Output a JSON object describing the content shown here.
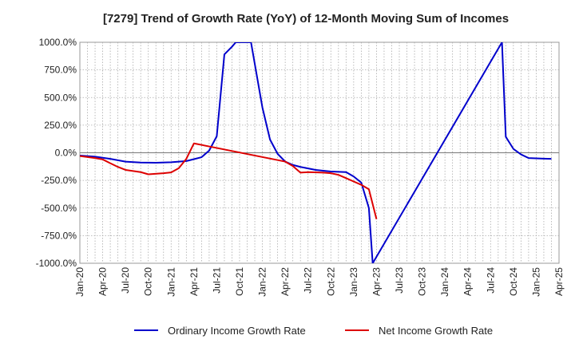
{
  "chart_data": {
    "type": "line",
    "title": "[7279]  Trend of Growth Rate (YoY) of 12-Month Moving Sum of Incomes",
    "xlabel": "",
    "ylabel": "",
    "ylim": [
      -1000,
      1000
    ],
    "yticks": [
      1000,
      750,
      500,
      250,
      0,
      -250,
      -500,
      -750,
      -1000
    ],
    "ytick_labels": [
      "1000.0%",
      "750.0%",
      "500.0%",
      "250.0%",
      "0.0%",
      "-250.0%",
      "-500.0%",
      "-750.0%",
      "-1000.0%"
    ],
    "xticks": [
      "Jan-20",
      "Apr-20",
      "Jul-20",
      "Oct-20",
      "Jan-21",
      "Apr-21",
      "Jul-21",
      "Oct-21",
      "Jan-22",
      "Apr-22",
      "Jul-22",
      "Oct-22",
      "Jan-23",
      "Apr-23",
      "Jul-23",
      "Oct-23",
      "Jan-24",
      "Apr-24",
      "Jul-24",
      "Oct-24",
      "Jan-25",
      "Apr-25"
    ],
    "x_unit": "month index from Jan-20",
    "grid": true,
    "legend_position": "bottom",
    "series": [
      {
        "name": "Ordinary Income Growth Rate",
        "color": "#0000cc",
        "points": [
          [
            0,
            -25
          ],
          [
            2,
            -35
          ],
          [
            4,
            -55
          ],
          [
            6,
            -80
          ],
          [
            8,
            -88
          ],
          [
            10,
            -90
          ],
          [
            12,
            -86
          ],
          [
            14,
            -75
          ],
          [
            15,
            -58
          ],
          [
            16,
            -40
          ],
          [
            17,
            20
          ],
          [
            18,
            150
          ],
          [
            19,
            890
          ],
          [
            20,
            960
          ],
          [
            20.5,
            1000
          ],
          [
            22.5,
            1000
          ],
          [
            24,
            410
          ],
          [
            25,
            120
          ],
          [
            26,
            -10
          ],
          [
            27,
            -80
          ],
          [
            28,
            -110
          ],
          [
            29,
            -128
          ],
          [
            31,
            -155
          ],
          [
            33,
            -170
          ],
          [
            35,
            -175
          ],
          [
            36,
            -215
          ],
          [
            37,
            -270
          ],
          [
            38,
            -500
          ],
          [
            38.5,
            -1000
          ],
          [
            55.5,
            1000
          ],
          [
            56,
            145
          ],
          [
            57,
            35
          ],
          [
            58,
            -15
          ],
          [
            59,
            -48
          ],
          [
            61,
            -53
          ],
          [
            62,
            -55
          ]
        ]
      },
      {
        "name": "Net Income Growth Rate",
        "color": "#dd0000",
        "points": [
          [
            0,
            -30
          ],
          [
            2,
            -48
          ],
          [
            3,
            -60
          ],
          [
            4,
            -95
          ],
          [
            5,
            -128
          ],
          [
            6,
            -155
          ],
          [
            8,
            -175
          ],
          [
            9,
            -195
          ],
          [
            11,
            -185
          ],
          [
            12,
            -178
          ],
          [
            13,
            -140
          ],
          [
            14,
            -55
          ],
          [
            15,
            85
          ],
          [
            27,
            -80
          ],
          [
            28,
            -120
          ],
          [
            29,
            -180
          ],
          [
            30,
            -175
          ],
          [
            32,
            -180
          ],
          [
            33,
            -185
          ],
          [
            34,
            -200
          ],
          [
            35,
            -230
          ],
          [
            36,
            -260
          ],
          [
            37,
            -290
          ],
          [
            38,
            -330
          ],
          [
            39,
            -600
          ]
        ]
      }
    ]
  }
}
